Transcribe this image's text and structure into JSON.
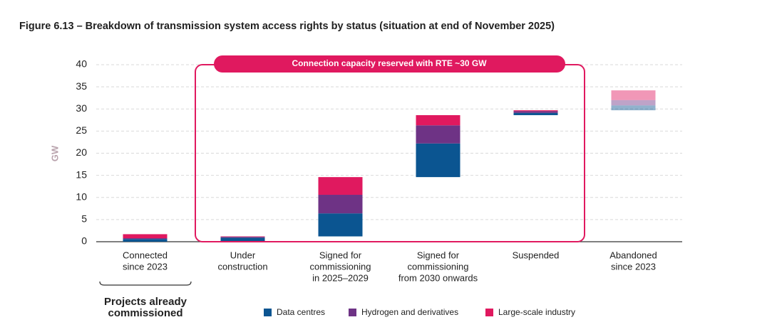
{
  "chart_data": {
    "type": "waterfall",
    "title": "Figure 6.13 – Breakdown of transmission system access rights by status (situation at end of November 2025)",
    "y_label": "GW",
    "categories": [
      [
        "Connected",
        "since 2023"
      ],
      [
        "Under",
        "construction"
      ],
      [
        "Signed for",
        "commissioning",
        "in 2025–2029"
      ],
      [
        "Signed for",
        "commissioning",
        "from 2030 onwards"
      ],
      [
        "Suspended"
      ],
      [
        "Abandoned",
        "since 2023"
      ]
    ],
    "series": [
      {
        "name": "Data centres",
        "color": "#0b5591",
        "values": [
          0.6,
          0.9,
          5.2,
          7.6,
          0.5,
          1.1
        ]
      },
      {
        "name": "Hydrogen and derivatives",
        "color": "#6e3385",
        "values": [
          0.2,
          0.2,
          4.2,
          4.1,
          0.4,
          1.2
        ]
      },
      {
        "name": "Large-scale industry",
        "color": "#e0195f",
        "values": [
          0.9,
          0.1,
          4.0,
          2.3,
          0.2,
          2.2
        ]
      }
    ],
    "ylim": [
      0,
      40
    ],
    "yticks": [
      0,
      5,
      10,
      15,
      20,
      25,
      30,
      35,
      40
    ],
    "grid": true,
    "annotation": "Connection capacity reserved with RTE ~30 GW",
    "bracket_label": [
      "Projects already",
      "commissioned"
    ]
  }
}
